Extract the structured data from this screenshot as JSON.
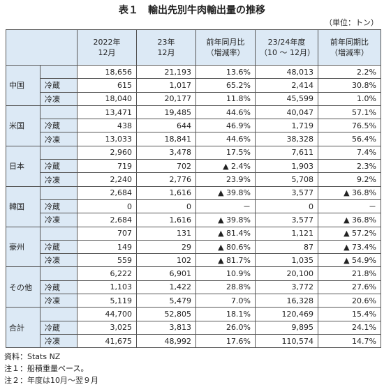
{
  "title": "表１　輸出先別牛肉輸出量の推移",
  "unit": "（単位：トン）",
  "header": [
    [
      "2022年",
      "12月"
    ],
    [
      "23年",
      "12月"
    ],
    [
      "前年同月比",
      "（増減率）"
    ],
    [
      "23/24年度",
      "（10 ～ 12月）"
    ],
    [
      "前年同期比",
      "（増減率）"
    ]
  ],
  "groups": [
    {
      "label": "中国",
      "rows": [
        {
          "cells": [
            "18,656",
            "21,193",
            "13.6%",
            "48,013",
            "2.2%"
          ]
        },
        {
          "label": "冷蔵",
          "cells": [
            "615",
            "1,017",
            "65.2%",
            "2,414",
            "30.8%"
          ]
        },
        {
          "label": "冷凍",
          "cells": [
            "18,040",
            "20,177",
            "11.8%",
            "45,599",
            "1.0%"
          ]
        }
      ]
    },
    {
      "label": "米国",
      "rows": [
        {
          "cells": [
            "13,471",
            "19,485",
            "44.6%",
            "40,047",
            "57.1%"
          ]
        },
        {
          "label": "冷蔵",
          "cells": [
            "438",
            "644",
            "46.9%",
            "1,719",
            "76.5%"
          ]
        },
        {
          "label": "冷凍",
          "cells": [
            "13,033",
            "18,841",
            "44.6%",
            "38,328",
            "56.4%"
          ]
        }
      ]
    },
    {
      "label": "日本",
      "rows": [
        {
          "cells": [
            "2,960",
            "3,478",
            "17.5%",
            "7,611",
            "7.4%"
          ]
        },
        {
          "label": "冷蔵",
          "cells": [
            "719",
            "702",
            "▲ 2.4%",
            "1,903",
            "2.3%"
          ]
        },
        {
          "label": "冷凍",
          "cells": [
            "2,240",
            "2,776",
            "23.9%",
            "5,708",
            "9.2%"
          ]
        }
      ]
    },
    {
      "label": "韓国",
      "rows": [
        {
          "cells": [
            "2,684",
            "1,616",
            "▲ 39.8%",
            "3,577",
            "▲ 36.8%"
          ]
        },
        {
          "label": "冷蔵",
          "cells": [
            "0",
            "0",
            "－",
            "0",
            "－"
          ]
        },
        {
          "label": "冷凍",
          "cells": [
            "2,684",
            "1,616",
            "▲ 39.8%",
            "3,577",
            "▲ 36.8%"
          ]
        }
      ]
    },
    {
      "label": "豪州",
      "rows": [
        {
          "cells": [
            "707",
            "131",
            "▲ 81.4%",
            "1,121",
            "▲ 57.2%"
          ]
        },
        {
          "label": "冷蔵",
          "cells": [
            "149",
            "29",
            "▲ 80.6%",
            "87",
            "▲ 73.4%"
          ]
        },
        {
          "label": "冷凍",
          "cells": [
            "559",
            "102",
            "▲ 81.7%",
            "1,035",
            "▲ 54.9%"
          ]
        }
      ]
    },
    {
      "label": "その他",
      "rows": [
        {
          "cells": [
            "6,222",
            "6,901",
            "10.9%",
            "20,100",
            "21.8%"
          ]
        },
        {
          "label": "冷蔵",
          "cells": [
            "1,103",
            "1,422",
            "28.8%",
            "3,772",
            "27.6%"
          ]
        },
        {
          "label": "冷凍",
          "cells": [
            "5,119",
            "5,479",
            "7.0%",
            "16,328",
            "20.6%"
          ]
        }
      ]
    },
    {
      "label": "合計",
      "rows": [
        {
          "cells": [
            "44,700",
            "52,805",
            "18.1%",
            "120,469",
            "15.4%"
          ]
        },
        {
          "label": "冷蔵",
          "cells": [
            "3,025",
            "3,813",
            "26.0%",
            "9,895",
            "24.1%"
          ]
        },
        {
          "label": "冷凍",
          "cells": [
            "41,675",
            "48,992",
            "17.6%",
            "110,574",
            "14.7%"
          ]
        }
      ]
    }
  ],
  "notes": [
    "資料：Stats NZ",
    "注１：船積重量ベース。",
    "注２：年度は10月～翌９月"
  ]
}
